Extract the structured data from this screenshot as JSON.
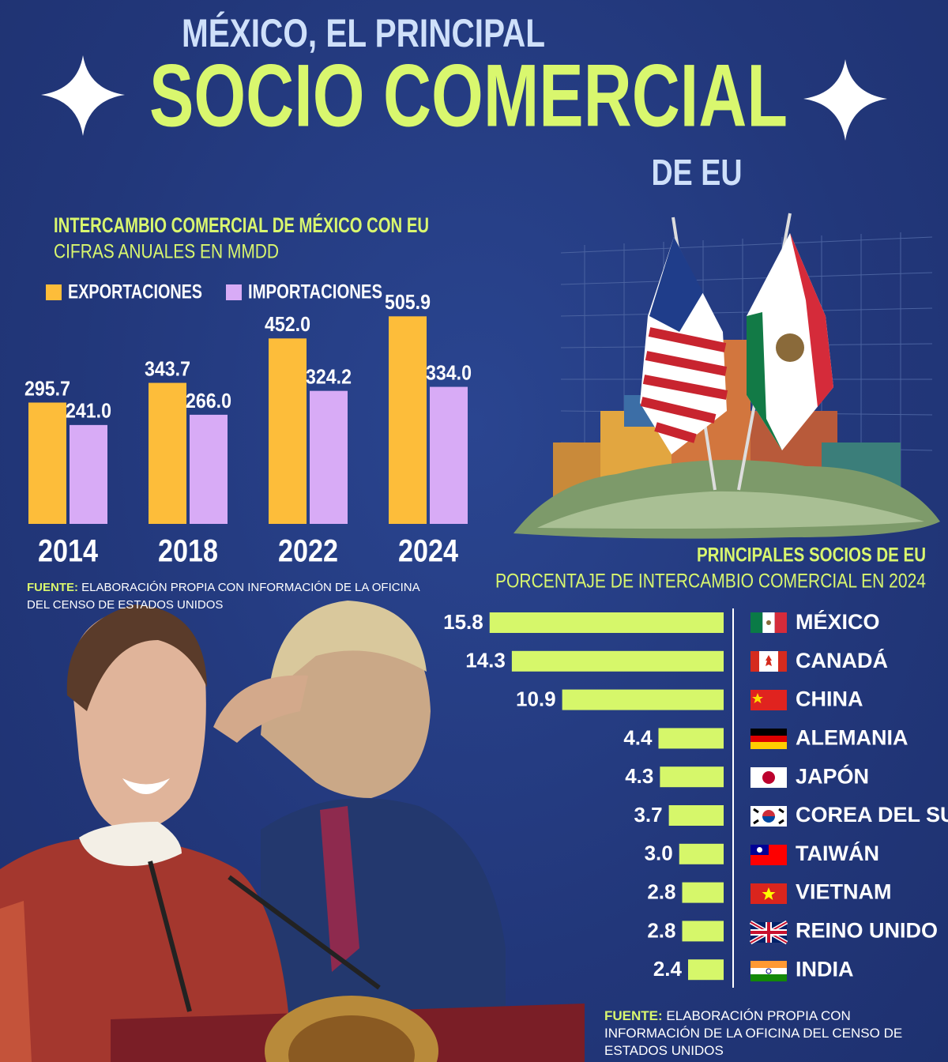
{
  "header": {
    "line1": "MÉXICO, EL PRINCIPAL",
    "line2": "SOCIO COMERCIAL",
    "line3": "DE EU"
  },
  "chart_data": [
    {
      "type": "bar",
      "title": "INTERCAMBIO COMERCIAL DE MÉXICO CON EU",
      "subtitle": "CIFRAS ANUALES EN MMDD",
      "categories": [
        "2014",
        "2018",
        "2022",
        "2024"
      ],
      "series": [
        {
          "name": "EXPORTACIONES",
          "color": "#fdbd3a",
          "values": [
            295.7,
            343.7,
            452.0,
            505.9
          ],
          "value_labels": [
            "295.7",
            "343.7",
            "452.0",
            "505.9"
          ]
        },
        {
          "name": "IMPORTACIONES",
          "color": "#d8abf6",
          "values": [
            241.0,
            266.0,
            324.2,
            334.0
          ],
          "value_labels": [
            "241.0",
            "266.0",
            "324.2",
            "334.0"
          ]
        }
      ],
      "ylim": [
        0,
        520
      ],
      "source_label": "FUENTE:",
      "source": "ELABORACIÓN PROPIA CON INFORMACIÓN DE LA OFICINA DEL CENSO DE ESTADOS UNIDOS"
    },
    {
      "type": "barh",
      "title": "PRINCIPALES SOCIOS DE EU",
      "subtitle": "PORCENTAJE DE INTERCAMBIO COMERCIAL EN 2024",
      "categories": [
        "MÉXICO",
        "CANADÁ",
        "CHINA",
        "ALEMANIA",
        "JAPÓN",
        "COREA DEL SUR",
        "TAIWÁN",
        "VIETNAM",
        "REINO UNIDO",
        "INDIA"
      ],
      "values": [
        15.8,
        14.3,
        10.9,
        4.4,
        4.3,
        3.7,
        3.0,
        2.8,
        2.8,
        2.4
      ],
      "value_labels": [
        "15.8",
        "14.3",
        "10.9",
        "4.4",
        "4.3",
        "3.7",
        "3.0",
        "2.8",
        "2.8",
        "2.4"
      ],
      "color": "#d6f76a",
      "xlim": [
        0,
        16
      ],
      "source_label": "FUENTE:",
      "source": "ELABORACIÓN PROPIA CON INFORMACIÓN DE LA OFICINA DEL CENSO DE ESTADOS UNIDOS"
    }
  ]
}
